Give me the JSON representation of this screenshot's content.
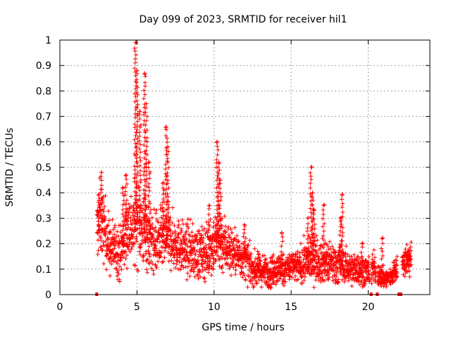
{
  "chart_data": {
    "type": "scatter",
    "title": "Day 099 of 2023, SRMTID for receiver hil1",
    "xlabel": "GPS time / hours",
    "ylabel": "SRMTID / TECUs",
    "xlim": [
      0,
      24
    ],
    "ylim": [
      0,
      1
    ],
    "xticks": [
      "0",
      "5",
      "10",
      "15",
      "20"
    ],
    "yticks": [
      "0",
      "0.1",
      "0.2",
      "0.3",
      "0.4",
      "0.5",
      "0.6",
      "0.7",
      "0.8",
      "0.9",
      "1"
    ],
    "grid": true,
    "marker": "+",
    "color": "#ff0000",
    "profile": [
      [
        2.4,
        0.25,
        0.06
      ],
      [
        2.6,
        0.3,
        0.07
      ],
      [
        3.0,
        0.24,
        0.06
      ],
      [
        3.3,
        0.17,
        0.05
      ],
      [
        3.6,
        0.19,
        0.05
      ],
      [
        3.9,
        0.16,
        0.05
      ],
      [
        4.2,
        0.22,
        0.06
      ],
      [
        4.5,
        0.28,
        0.07
      ],
      [
        4.8,
        0.25,
        0.07
      ],
      [
        5.0,
        0.3,
        0.08
      ],
      [
        5.3,
        0.26,
        0.07
      ],
      [
        5.6,
        0.24,
        0.07
      ],
      [
        6.0,
        0.2,
        0.06
      ],
      [
        6.5,
        0.21,
        0.06
      ],
      [
        7.0,
        0.22,
        0.06
      ],
      [
        7.5,
        0.2,
        0.05
      ],
      [
        8.0,
        0.18,
        0.05
      ],
      [
        8.5,
        0.17,
        0.05
      ],
      [
        9.0,
        0.16,
        0.05
      ],
      [
        9.5,
        0.17,
        0.05
      ],
      [
        10.0,
        0.2,
        0.06
      ],
      [
        10.5,
        0.21,
        0.06
      ],
      [
        11.0,
        0.18,
        0.05
      ],
      [
        11.5,
        0.16,
        0.04
      ],
      [
        12.0,
        0.14,
        0.04
      ],
      [
        12.5,
        0.1,
        0.03
      ],
      [
        13.0,
        0.09,
        0.03
      ],
      [
        13.5,
        0.09,
        0.03
      ],
      [
        14.0,
        0.1,
        0.03
      ],
      [
        14.5,
        0.1,
        0.03
      ],
      [
        15.0,
        0.11,
        0.03
      ],
      [
        15.5,
        0.11,
        0.03
      ],
      [
        16.0,
        0.13,
        0.04
      ],
      [
        16.5,
        0.14,
        0.04
      ],
      [
        17.0,
        0.13,
        0.04
      ],
      [
        17.5,
        0.12,
        0.04
      ],
      [
        18.0,
        0.12,
        0.04
      ],
      [
        18.5,
        0.11,
        0.03
      ],
      [
        19.0,
        0.1,
        0.03
      ],
      [
        19.5,
        0.1,
        0.03
      ],
      [
        20.0,
        0.09,
        0.03
      ],
      [
        20.4,
        0.1,
        0.03
      ],
      [
        20.8,
        0.07,
        0.02
      ],
      [
        21.2,
        0.06,
        0.02
      ],
      [
        21.6,
        0.08,
        0.02
      ],
      [
        22.0,
        0.11,
        0.03
      ],
      [
        22.4,
        0.13,
        0.03
      ],
      [
        22.8,
        0.14,
        0.03
      ]
    ],
    "gaps": [
      [
        2.3,
        2.4
      ],
      [
        20.1,
        20.2
      ],
      [
        20.5,
        20.6
      ],
      [
        21.9,
        22.2
      ]
    ],
    "spikes": [
      [
        2.5,
        0.39
      ],
      [
        2.7,
        0.48
      ],
      [
        4.1,
        0.42
      ],
      [
        4.3,
        0.47
      ],
      [
        4.9,
        0.99
      ],
      [
        5.0,
        0.88
      ],
      [
        5.2,
        0.72
      ],
      [
        5.5,
        0.87
      ],
      [
        5.6,
        0.75
      ],
      [
        5.8,
        0.52
      ],
      [
        6.9,
        0.66
      ],
      [
        7.0,
        0.58
      ],
      [
        6.7,
        0.44
      ],
      [
        9.7,
        0.35
      ],
      [
        10.2,
        0.6
      ],
      [
        10.3,
        0.52
      ],
      [
        10.4,
        0.45
      ],
      [
        12.0,
        0.27
      ],
      [
        12.9,
        0.16
      ],
      [
        14.4,
        0.24
      ],
      [
        16.1,
        0.3
      ],
      [
        16.3,
        0.5
      ],
      [
        16.4,
        0.4
      ],
      [
        16.5,
        0.33
      ],
      [
        17.1,
        0.35
      ],
      [
        18.3,
        0.39
      ],
      [
        18.2,
        0.3
      ],
      [
        19.6,
        0.2
      ],
      [
        20.9,
        0.22
      ],
      [
        22.6,
        0.17
      ]
    ]
  }
}
